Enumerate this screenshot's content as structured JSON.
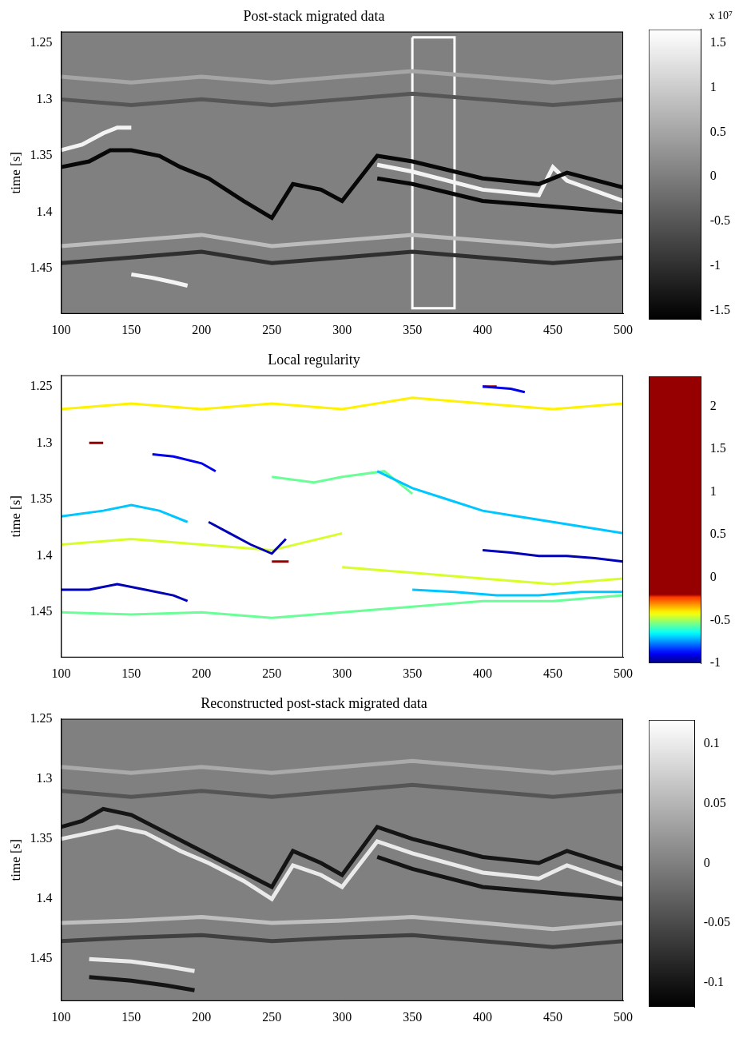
{
  "chart_data": [
    {
      "type": "line",
      "title": "Post-stack migrated data",
      "y_label": "time [s]",
      "xlim": [
        100,
        500
      ],
      "xticks": [
        100,
        150,
        200,
        250,
        300,
        350,
        400,
        450,
        500
      ],
      "ylim": [
        1.24,
        1.49
      ],
      "yticks": [
        1.25,
        1.3,
        1.35,
        1.4,
        1.45
      ],
      "grid": false,
      "series": [
        {
          "x": [
            100,
            120,
            135,
            150,
            170,
            185,
            205,
            230,
            250,
            265,
            285,
            300,
            325,
            350,
            400,
            440,
            460,
            500
          ],
          "values": [
            1.36,
            1.355,
            1.345,
            1.345,
            1.35,
            1.36,
            1.37,
            1.39,
            1.405,
            1.375,
            1.38,
            1.39,
            1.35,
            1.355,
            1.37,
            1.375,
            1.365,
            1.378
          ],
          "level": -1.5
        },
        {
          "x": [
            325,
            350,
            400,
            440,
            450,
            460,
            500
          ],
          "values": [
            1.358,
            1.364,
            1.38,
            1.385,
            1.36,
            1.372,
            1.39
          ],
          "level": 1.5
        },
        {
          "x": [
            100,
            115,
            130,
            140,
            150
          ],
          "values": [
            1.345,
            1.34,
            1.33,
            1.325,
            1.325
          ],
          "level": 1.5
        },
        {
          "x": [
            325,
            350,
            400,
            450,
            500
          ],
          "values": [
            1.37,
            1.375,
            1.39,
            1.395,
            1.4
          ],
          "level": -1.5
        },
        {
          "x": [
            100,
            150,
            200,
            250,
            300,
            350,
            400,
            450,
            500
          ],
          "values": [
            1.43,
            1.425,
            1.42,
            1.43,
            1.425,
            1.42,
            1.425,
            1.43,
            1.425
          ],
          "level": 0.8
        },
        {
          "x": [
            100,
            150,
            200,
            250,
            300,
            350,
            400,
            450,
            500
          ],
          "values": [
            1.445,
            1.44,
            1.435,
            1.445,
            1.44,
            1.435,
            1.44,
            1.445,
            1.44
          ],
          "level": -1
        },
        {
          "x": [
            150,
            165,
            180,
            190
          ],
          "values": [
            1.455,
            1.458,
            1.462,
            1.465
          ],
          "level": 1.5
        },
        {
          "x": [
            100,
            150,
            200,
            250,
            300,
            350,
            400,
            450,
            500
          ],
          "values": [
            1.28,
            1.285,
            1.28,
            1.285,
            1.28,
            1.275,
            1.28,
            1.285,
            1.28
          ],
          "level": 0.5
        },
        {
          "x": [
            100,
            150,
            200,
            250,
            300,
            350,
            400,
            450,
            500
          ],
          "values": [
            1.3,
            1.305,
            1.3,
            1.305,
            1.3,
            1.295,
            1.3,
            1.305,
            1.3
          ],
          "level": -0.5
        }
      ],
      "box": {
        "x": [
          350,
          380
        ],
        "y": [
          1.245,
          1.485
        ]
      },
      "colorbar": {
        "range": [
          -1.6,
          1.65
        ],
        "ticks": [
          -1.5,
          -1,
          -0.5,
          0,
          0.5,
          1,
          1.5
        ],
        "label": "x 10⁷",
        "color": "gray"
      }
    },
    {
      "type": "line",
      "title": "Local regularity",
      "y_label": "time [s]",
      "xlim": [
        100,
        500
      ],
      "xticks": [
        100,
        150,
        200,
        250,
        300,
        350,
        400,
        450,
        500
      ],
      "ylim": [
        1.24,
        1.49
      ],
      "yticks": [
        1.25,
        1.3,
        1.35,
        1.4,
        1.45
      ],
      "grid": false,
      "series": [
        {
          "x": [
            100,
            120,
            140,
            160,
            180,
            190
          ],
          "values": [
            1.43,
            1.43,
            1.425,
            1.43,
            1.435,
            1.44
          ],
          "level": -0.95
        },
        {
          "x": [
            165,
            180,
            200,
            210
          ],
          "values": [
            1.31,
            1.312,
            1.318,
            1.325
          ],
          "level": -0.9
        },
        {
          "x": [
            205,
            220,
            235,
            250,
            260
          ],
          "values": [
            1.37,
            1.38,
            1.39,
            1.398,
            1.385
          ],
          "level": -0.95
        },
        {
          "x": [
            400,
            420,
            440,
            460,
            480,
            500
          ],
          "values": [
            1.395,
            1.397,
            1.4,
            1.4,
            1.402,
            1.405
          ],
          "level": -0.95
        },
        {
          "x": [
            325,
            350,
            375,
            400,
            425,
            450,
            475,
            500
          ],
          "values": [
            1.325,
            1.34,
            1.35,
            1.36,
            1.365,
            1.37,
            1.375,
            1.38
          ],
          "level": -0.7
        },
        {
          "x": [
            100,
            130,
            150,
            170,
            190
          ],
          "values": [
            1.365,
            1.36,
            1.355,
            1.36,
            1.37
          ],
          "level": -0.7
        },
        {
          "x": [
            100,
            150,
            200,
            250,
            300
          ],
          "values": [
            1.39,
            1.385,
            1.39,
            1.395,
            1.38
          ],
          "level": -0.45
        },
        {
          "x": [
            300,
            350,
            400,
            450,
            500
          ],
          "values": [
            1.41,
            1.415,
            1.42,
            1.425,
            1.42
          ],
          "level": -0.45
        },
        {
          "x": [
            100,
            150,
            200,
            250,
            300,
            350,
            400,
            450,
            500
          ],
          "values": [
            1.45,
            1.452,
            1.45,
            1.455,
            1.45,
            1.445,
            1.44,
            1.44,
            1.435
          ],
          "level": -0.55
        },
        {
          "x": [
            100,
            150,
            200,
            250,
            300,
            350,
            400,
            450,
            500
          ],
          "values": [
            1.27,
            1.265,
            1.27,
            1.265,
            1.27,
            1.26,
            1.265,
            1.27,
            1.265
          ],
          "level": -0.4
        },
        {
          "x": [
            250,
            280,
            300,
            330,
            350
          ],
          "values": [
            1.33,
            1.335,
            1.33,
            1.325,
            1.345
          ],
          "level": -0.55
        },
        {
          "x": [
            350,
            380,
            410,
            440,
            470,
            500
          ],
          "values": [
            1.43,
            1.432,
            1.435,
            1.435,
            1.432,
            1.432
          ],
          "level": -0.7
        },
        {
          "x": [
            400,
            420,
            430
          ],
          "values": [
            1.25,
            1.252,
            1.255
          ],
          "level": -0.9
        },
        {
          "x": [
            120,
            130
          ],
          "values": [
            1.3,
            1.3
          ],
          "level": 2
        },
        {
          "x": [
            250,
            262
          ],
          "values": [
            1.405,
            1.405
          ],
          "level": 2
        },
        {
          "x": [
            400,
            410
          ],
          "values": [
            1.25,
            1.25
          ],
          "level": 2
        }
      ],
      "colorbar": {
        "range": [
          -1,
          2.35
        ],
        "ticks": [
          -1,
          -0.5,
          0,
          0.5,
          1,
          1.5,
          2
        ],
        "color": "jet"
      }
    },
    {
      "type": "line",
      "title": "Reconstructed post-stack migrated data",
      "y_label": "time [s]",
      "xlim": [
        100,
        500
      ],
      "xticks": [
        100,
        150,
        200,
        250,
        300,
        350,
        400,
        450,
        500
      ],
      "ylim": [
        1.25,
        1.485
      ],
      "yticks": [
        1.25,
        1.3,
        1.35,
        1.4,
        1.45
      ],
      "grid": false,
      "series": [
        {
          "x": [
            100,
            115,
            130,
            150,
            175,
            200,
            225,
            250,
            265,
            285,
            300,
            325,
            350,
            400,
            440,
            460,
            500
          ],
          "values": [
            1.34,
            1.335,
            1.325,
            1.33,
            1.345,
            1.36,
            1.375,
            1.39,
            1.36,
            1.37,
            1.38,
            1.34,
            1.35,
            1.365,
            1.37,
            1.36,
            1.375
          ],
          "level": -0.1
        },
        {
          "x": [
            100,
            120,
            140,
            160,
            185,
            205,
            230,
            250,
            265,
            285,
            300,
            325,
            350,
            400,
            440,
            460,
            500
          ],
          "values": [
            1.35,
            1.345,
            1.34,
            1.345,
            1.36,
            1.37,
            1.385,
            1.4,
            1.372,
            1.38,
            1.39,
            1.352,
            1.362,
            1.378,
            1.383,
            1.372,
            1.388
          ],
          "level": 0.1
        },
        {
          "x": [
            325,
            350,
            400,
            450,
            500
          ],
          "values": [
            1.365,
            1.375,
            1.39,
            1.395,
            1.4
          ],
          "level": -0.1
        },
        {
          "x": [
            100,
            150,
            200,
            250,
            300,
            350,
            400,
            450,
            500
          ],
          "values": [
            1.42,
            1.418,
            1.415,
            1.42,
            1.418,
            1.415,
            1.42,
            1.425,
            1.42
          ],
          "level": 0.06
        },
        {
          "x": [
            100,
            150,
            200,
            250,
            300,
            350,
            400,
            450,
            500
          ],
          "values": [
            1.435,
            1.432,
            1.43,
            1.435,
            1.432,
            1.43,
            1.435,
            1.44,
            1.435
          ],
          "level": -0.06
        },
        {
          "x": [
            120,
            150,
            175,
            195
          ],
          "values": [
            1.45,
            1.452,
            1.456,
            1.46
          ],
          "level": 0.1
        },
        {
          "x": [
            120,
            150,
            175,
            195
          ],
          "values": [
            1.465,
            1.468,
            1.472,
            1.476
          ],
          "level": -0.1
        },
        {
          "x": [
            100,
            150,
            200,
            250,
            300,
            350,
            400,
            450,
            500
          ],
          "values": [
            1.29,
            1.295,
            1.29,
            1.295,
            1.29,
            1.285,
            1.29,
            1.295,
            1.29
          ],
          "level": 0.04
        },
        {
          "x": [
            100,
            150,
            200,
            250,
            300,
            350,
            400,
            450,
            500
          ],
          "values": [
            1.31,
            1.315,
            1.31,
            1.315,
            1.31,
            1.305,
            1.31,
            1.315,
            1.31
          ],
          "level": -0.04
        }
      ],
      "colorbar": {
        "range": [
          -0.12,
          0.12
        ],
        "ticks": [
          -0.1,
          -0.05,
          0,
          0.05,
          0.1
        ],
        "color": "gray"
      }
    }
  ]
}
